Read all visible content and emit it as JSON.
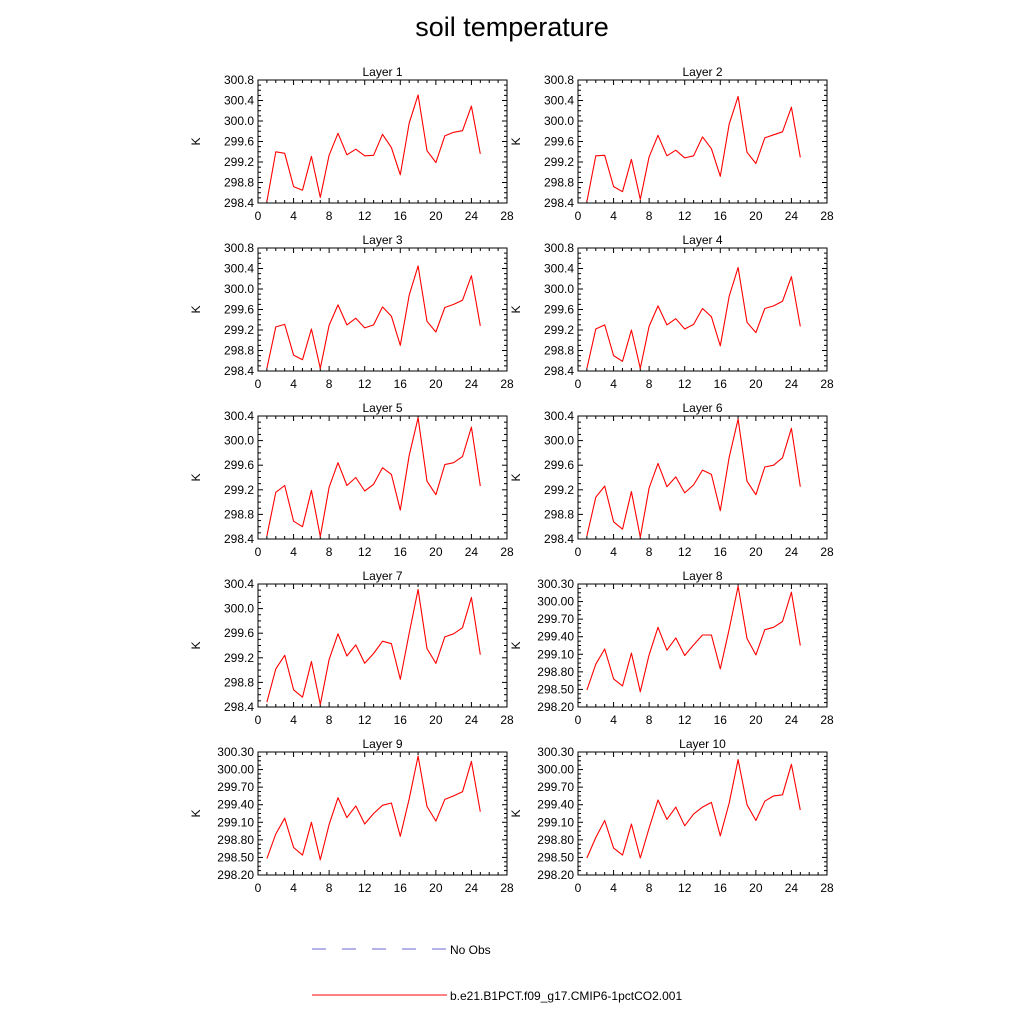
{
  "figure": {
    "title": "soil temperature"
  },
  "colors": {
    "model_line": "#ff0000",
    "obs_line": "#6a6ad6",
    "axis": "#000000"
  },
  "legend": {
    "placement": "bottom-center",
    "entries": [
      {
        "label": "No Obs",
        "style": "dashed",
        "color": "#6a6ad6"
      },
      {
        "label": "b.e21.B1PCT.f09_g17.CMIP6-1pctCO2.001",
        "style": "solid",
        "color": "#ff0000"
      }
    ]
  },
  "chart_data": [
    {
      "type": "line",
      "title": "Layer 1",
      "xlabel": "",
      "ylabel": "K",
      "xlim": [
        0,
        28
      ],
      "xticks": [
        0,
        4,
        8,
        12,
        16,
        20,
        24,
        28
      ],
      "ylim": [
        298.4,
        300.8
      ],
      "yticks": [
        "298.4",
        "298.8",
        "299.2",
        "299.6",
        "300.0",
        "300.4",
        "300.8"
      ],
      "grid": false,
      "x": [
        1,
        2,
        3,
        4,
        5,
        6,
        7,
        8,
        9,
        10,
        11,
        12,
        13,
        14,
        15,
        16,
        17,
        18,
        19,
        20,
        21,
        22,
        23,
        24,
        25
      ],
      "series": [
        {
          "name": "b.e21.B1PCT.f09_g17.CMIP6-1pctCO2.001",
          "values": [
            298.43,
            299.4,
            299.37,
            298.72,
            298.65,
            299.31,
            298.51,
            299.33,
            299.76,
            299.34,
            299.45,
            299.32,
            299.33,
            299.74,
            299.48,
            298.95,
            299.96,
            300.51,
            299.42,
            299.19,
            299.71,
            299.78,
            299.81,
            300.29,
            299.36
          ]
        }
      ]
    },
    {
      "type": "line",
      "title": "Layer 2",
      "xlabel": "",
      "ylabel": "K",
      "xlim": [
        0,
        28
      ],
      "xticks": [
        0,
        4,
        8,
        12,
        16,
        20,
        24,
        28
      ],
      "ylim": [
        298.4,
        300.8
      ],
      "yticks": [
        "298.4",
        "298.8",
        "299.2",
        "299.6",
        "300.0",
        "300.4",
        "300.8"
      ],
      "grid": false,
      "x": [
        1,
        2,
        3,
        4,
        5,
        6,
        7,
        8,
        9,
        10,
        11,
        12,
        13,
        14,
        15,
        16,
        17,
        18,
        19,
        20,
        21,
        22,
        23,
        24,
        25
      ],
      "series": [
        {
          "name": "b.e21.B1PCT.f09_g17.CMIP6-1pctCO2.001",
          "values": [
            298.43,
            299.32,
            299.33,
            298.72,
            298.62,
            299.25,
            298.47,
            299.3,
            299.72,
            299.32,
            299.43,
            299.28,
            299.32,
            299.69,
            299.46,
            298.92,
            299.94,
            300.48,
            299.39,
            299.17,
            299.67,
            299.73,
            299.79,
            300.27,
            299.29
          ]
        }
      ]
    },
    {
      "type": "line",
      "title": "Layer 3",
      "xlabel": "",
      "ylabel": "K",
      "xlim": [
        0,
        28
      ],
      "xticks": [
        0,
        4,
        8,
        12,
        16,
        20,
        24,
        28
      ],
      "ylim": [
        298.4,
        300.8
      ],
      "yticks": [
        "298.4",
        "298.8",
        "299.2",
        "299.6",
        "300.0",
        "300.4",
        "300.8"
      ],
      "grid": false,
      "x": [
        1,
        2,
        3,
        4,
        5,
        6,
        7,
        8,
        9,
        10,
        11,
        12,
        13,
        14,
        15,
        16,
        17,
        18,
        19,
        20,
        21,
        22,
        23,
        24,
        25
      ],
      "series": [
        {
          "name": "b.e21.B1PCT.f09_g17.CMIP6-1pctCO2.001",
          "values": [
            298.45,
            299.26,
            299.31,
            298.71,
            298.62,
            299.22,
            298.45,
            299.29,
            299.69,
            299.3,
            299.43,
            299.24,
            299.3,
            299.65,
            299.47,
            298.9,
            299.88,
            300.45,
            299.37,
            299.16,
            299.64,
            299.7,
            299.78,
            300.26,
            299.28
          ]
        }
      ]
    },
    {
      "type": "line",
      "title": "Layer 4",
      "xlabel": "",
      "ylabel": "K",
      "xlim": [
        0,
        28
      ],
      "xticks": [
        0,
        4,
        8,
        12,
        16,
        20,
        24,
        28
      ],
      "ylim": [
        298.4,
        300.8
      ],
      "yticks": [
        "298.4",
        "298.8",
        "299.2",
        "299.6",
        "300.0",
        "300.4",
        "300.8"
      ],
      "grid": false,
      "x": [
        1,
        2,
        3,
        4,
        5,
        6,
        7,
        8,
        9,
        10,
        11,
        12,
        13,
        14,
        15,
        16,
        17,
        18,
        19,
        20,
        21,
        22,
        23,
        24,
        25
      ],
      "series": [
        {
          "name": "b.e21.B1PCT.f09_g17.CMIP6-1pctCO2.001",
          "values": [
            298.45,
            299.22,
            299.3,
            298.7,
            298.59,
            299.2,
            298.45,
            299.27,
            299.67,
            299.3,
            299.42,
            299.22,
            299.31,
            299.62,
            299.46,
            298.89,
            299.86,
            300.42,
            299.35,
            299.15,
            299.62,
            299.67,
            299.76,
            300.24,
            299.27
          ]
        }
      ]
    },
    {
      "type": "line",
      "title": "Layer 5",
      "xlabel": "",
      "ylabel": "K",
      "xlim": [
        0,
        28
      ],
      "xticks": [
        0,
        4,
        8,
        12,
        16,
        20,
        24,
        28
      ],
      "ylim": [
        298.4,
        300.4
      ],
      "yticks": [
        "298.4",
        "298.8",
        "299.2",
        "299.6",
        "300.0",
        "300.4"
      ],
      "grid": false,
      "x": [
        1,
        2,
        3,
        4,
        5,
        6,
        7,
        8,
        9,
        10,
        11,
        12,
        13,
        14,
        15,
        16,
        17,
        18,
        19,
        20,
        21,
        22,
        23,
        24,
        25
      ],
      "series": [
        {
          "name": "b.e21.B1PCT.f09_g17.CMIP6-1pctCO2.001",
          "values": [
            298.45,
            299.16,
            299.27,
            298.69,
            298.6,
            299.19,
            298.44,
            299.24,
            299.64,
            299.27,
            299.4,
            299.18,
            299.29,
            299.56,
            299.45,
            298.87,
            299.76,
            300.37,
            299.34,
            299.12,
            299.61,
            299.64,
            299.74,
            300.22,
            299.26
          ]
        }
      ]
    },
    {
      "type": "line",
      "title": "Layer 6",
      "xlabel": "",
      "ylabel": "K",
      "xlim": [
        0,
        28
      ],
      "xticks": [
        0,
        4,
        8,
        12,
        16,
        20,
        24,
        28
      ],
      "ylim": [
        298.4,
        300.4
      ],
      "yticks": [
        "298.4",
        "298.8",
        "299.2",
        "299.6",
        "300.0",
        "300.4"
      ],
      "grid": false,
      "x": [
        1,
        2,
        3,
        4,
        5,
        6,
        7,
        8,
        9,
        10,
        11,
        12,
        13,
        14,
        15,
        16,
        17,
        18,
        19,
        20,
        21,
        22,
        23,
        24,
        25
      ],
      "series": [
        {
          "name": "b.e21.B1PCT.f09_g17.CMIP6-1pctCO2.001",
          "values": [
            298.45,
            299.08,
            299.26,
            298.68,
            298.56,
            299.17,
            298.43,
            299.23,
            299.63,
            299.25,
            299.41,
            299.15,
            299.28,
            299.52,
            299.45,
            298.86,
            299.73,
            300.35,
            299.34,
            299.12,
            299.57,
            299.6,
            299.72,
            300.2,
            299.25
          ]
        }
      ]
    },
    {
      "type": "line",
      "title": "Layer 7",
      "xlabel": "",
      "ylabel": "K",
      "xlim": [
        0,
        28
      ],
      "xticks": [
        0,
        4,
        8,
        12,
        16,
        20,
        24,
        28
      ],
      "ylim": [
        298.4,
        300.4
      ],
      "yticks": [
        "298.4",
        "298.8",
        "299.2",
        "299.6",
        "300.0",
        "300.4"
      ],
      "grid": false,
      "x": [
        1,
        2,
        3,
        4,
        5,
        6,
        7,
        8,
        9,
        10,
        11,
        12,
        13,
        14,
        15,
        16,
        17,
        18,
        19,
        20,
        21,
        22,
        23,
        24,
        25
      ],
      "series": [
        {
          "name": "b.e21.B1PCT.f09_g17.CMIP6-1pctCO2.001",
          "values": [
            298.48,
            299.02,
            299.24,
            298.68,
            298.56,
            299.14,
            298.44,
            299.17,
            299.59,
            299.23,
            299.41,
            299.11,
            299.27,
            299.47,
            299.43,
            298.85,
            299.6,
            300.31,
            299.35,
            299.11,
            299.54,
            299.59,
            299.69,
            300.18,
            299.25
          ]
        }
      ]
    },
    {
      "type": "line",
      "title": "Layer 8",
      "xlabel": "",
      "ylabel": "K",
      "xlim": [
        0,
        28
      ],
      "xticks": [
        0,
        4,
        8,
        12,
        16,
        20,
        24,
        28
      ],
      "ylim": [
        298.2,
        300.3
      ],
      "yticks": [
        "298.20",
        "298.50",
        "298.80",
        "299.10",
        "299.40",
        "299.70",
        "300.00",
        "300.30"
      ],
      "grid": false,
      "x": [
        1,
        2,
        3,
        4,
        5,
        6,
        7,
        8,
        9,
        10,
        11,
        12,
        13,
        14,
        15,
        16,
        17,
        18,
        19,
        20,
        21,
        22,
        23,
        24,
        25
      ],
      "series": [
        {
          "name": "b.e21.B1PCT.f09_g17.CMIP6-1pctCO2.001",
          "values": [
            298.49,
            298.93,
            299.19,
            298.68,
            298.56,
            299.12,
            298.46,
            299.09,
            299.56,
            299.17,
            299.38,
            299.08,
            299.26,
            299.43,
            299.43,
            298.85,
            299.53,
            300.26,
            299.37,
            299.09,
            299.52,
            299.56,
            299.66,
            300.16,
            299.25
          ]
        }
      ]
    },
    {
      "type": "line",
      "title": "Layer 9",
      "xlabel": "",
      "ylabel": "K",
      "xlim": [
        0,
        28
      ],
      "xticks": [
        0,
        4,
        8,
        12,
        16,
        20,
        24,
        28
      ],
      "ylim": [
        298.2,
        300.3
      ],
      "yticks": [
        "298.20",
        "298.50",
        "298.80",
        "299.10",
        "299.40",
        "299.70",
        "300.00",
        "300.30"
      ],
      "grid": false,
      "x": [
        1,
        2,
        3,
        4,
        5,
        6,
        7,
        8,
        9,
        10,
        11,
        12,
        13,
        14,
        15,
        16,
        17,
        18,
        19,
        20,
        21,
        22,
        23,
        24,
        25
      ],
      "series": [
        {
          "name": "b.e21.B1PCT.f09_g17.CMIP6-1pctCO2.001",
          "values": [
            298.48,
            298.9,
            299.17,
            298.67,
            298.54,
            299.1,
            298.46,
            299.06,
            299.52,
            299.18,
            299.38,
            299.07,
            299.25,
            299.39,
            299.43,
            298.86,
            299.5,
            300.23,
            299.37,
            299.12,
            299.49,
            299.55,
            299.62,
            300.14,
            299.28
          ]
        }
      ]
    },
    {
      "type": "line",
      "title": "Layer 10",
      "xlabel": "",
      "ylabel": "K",
      "xlim": [
        0,
        28
      ],
      "xticks": [
        0,
        4,
        8,
        12,
        16,
        20,
        24,
        28
      ],
      "ylim": [
        298.2,
        300.3
      ],
      "yticks": [
        "298.20",
        "298.50",
        "298.80",
        "299.10",
        "299.40",
        "299.70",
        "300.00",
        "300.30"
      ],
      "grid": false,
      "x": [
        1,
        2,
        3,
        4,
        5,
        6,
        7,
        8,
        9,
        10,
        11,
        12,
        13,
        14,
        15,
        16,
        17,
        18,
        19,
        20,
        21,
        22,
        23,
        24,
        25
      ],
      "series": [
        {
          "name": "b.e21.B1PCT.f09_g17.CMIP6-1pctCO2.001",
          "values": [
            298.49,
            298.84,
            299.13,
            298.66,
            298.54,
            299.07,
            298.49,
            299.0,
            299.48,
            299.15,
            299.36,
            299.04,
            299.24,
            299.36,
            299.44,
            298.87,
            299.43,
            300.17,
            299.4,
            299.13,
            299.46,
            299.55,
            299.57,
            300.09,
            299.31
          ]
        }
      ]
    }
  ]
}
